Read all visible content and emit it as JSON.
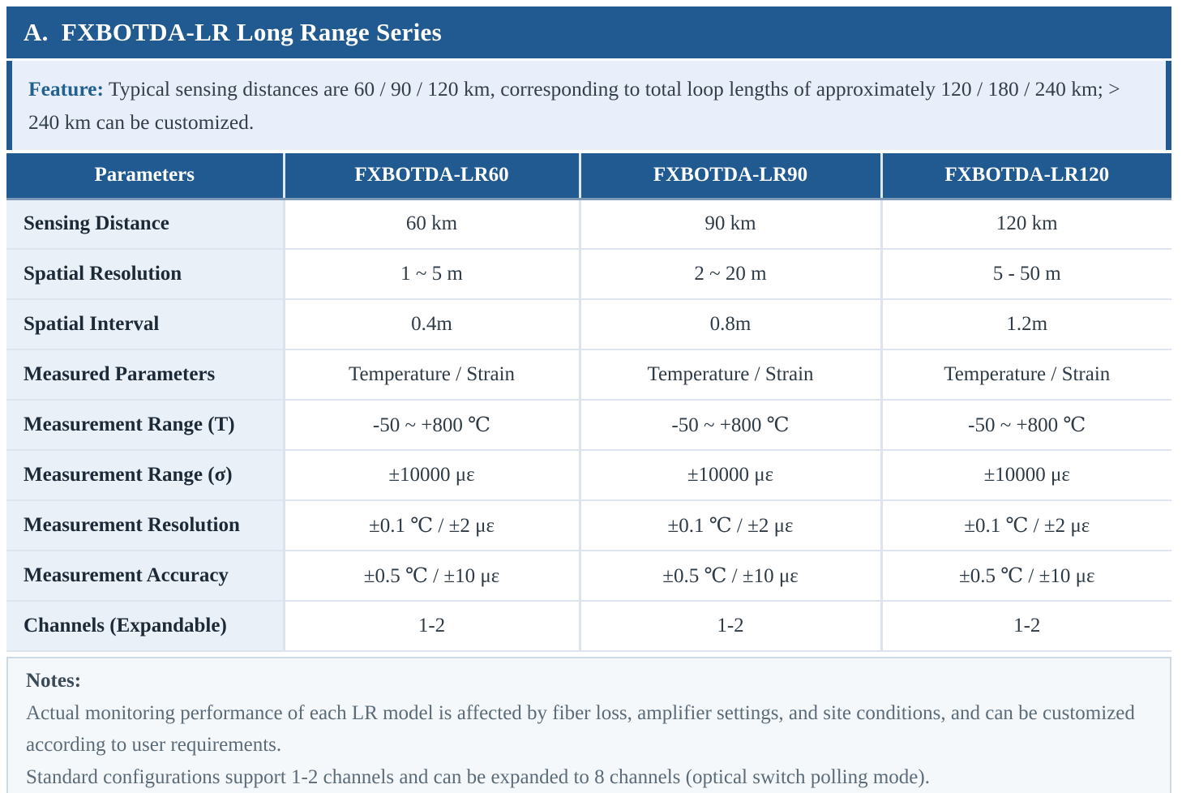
{
  "page": {
    "title": "A.  FXBOTDA-LR Long Range Series"
  },
  "feature": {
    "label": "Feature:",
    "text": " Typical sensing distances are 60 / 90 / 120 km, corresponding to total loop lengths of approximately 120 / 180 / 240 km; > 240 km can be customized."
  },
  "table": {
    "columns": [
      "Parameters",
      "FXBOTDA-LR60",
      "FXBOTDA-LR90",
      "FXBOTDA-LR120"
    ],
    "rows": [
      {
        "label": "Sensing Distance",
        "values": [
          "60 km",
          "90 km",
          "120 km"
        ]
      },
      {
        "label": "Spatial Resolution",
        "values": [
          "1 ~ 5 m",
          "2 ~ 20 m",
          "5 - 50 m"
        ]
      },
      {
        "label": "Spatial Interval",
        "values": [
          "0.4m",
          "0.8m",
          "1.2m"
        ]
      },
      {
        "label": "Measured Parameters",
        "values": [
          "Temperature / Strain",
          "Temperature / Strain",
          "Temperature / Strain"
        ]
      },
      {
        "label": "Measurement Range (T)",
        "values": [
          "-50 ~ +800 ℃",
          "-50 ~ +800 ℃",
          "-50 ~ +800 ℃"
        ]
      },
      {
        "label": "Measurement Range (σ)",
        "values": [
          "±10000 με",
          "±10000 με",
          "±10000 με"
        ]
      },
      {
        "label": "Measurement Resolution",
        "values": [
          "±0.1 ℃ / ±2 με",
          "±0.1 ℃ / ±2 με",
          "±0.1 ℃ / ±2 με"
        ]
      },
      {
        "label": "Measurement Accuracy",
        "values": [
          "±0.5 ℃ / ±10 με",
          "±0.5 ℃ / ±10 με",
          "±0.5 ℃ / ±10 με"
        ]
      },
      {
        "label": "Channels (Expandable)",
        "values": [
          "1-2",
          "1-2",
          "1-2"
        ]
      }
    ]
  },
  "notes": {
    "label": "Notes:",
    "lines": [
      "Actual monitoring performance of each LR model is affected by fiber loss, amplifier settings, and site conditions, and can be customized according to user requirements.",
      "Standard configurations support 1-2 channels and can be expanded to 8 channels (optical switch polling mode)."
    ]
  },
  "colors": {
    "primary_blue": "#215a91",
    "feature_bg": "#e9effa",
    "label_column_bg": "#eaf0f8",
    "grid_line": "#dde4ee",
    "notes_bg": "#f4f8fb",
    "notes_border": "#cdd9e4",
    "header_text": "#ffffff",
    "body_text": "#2e3b46",
    "notes_text": "#5b6b78"
  }
}
